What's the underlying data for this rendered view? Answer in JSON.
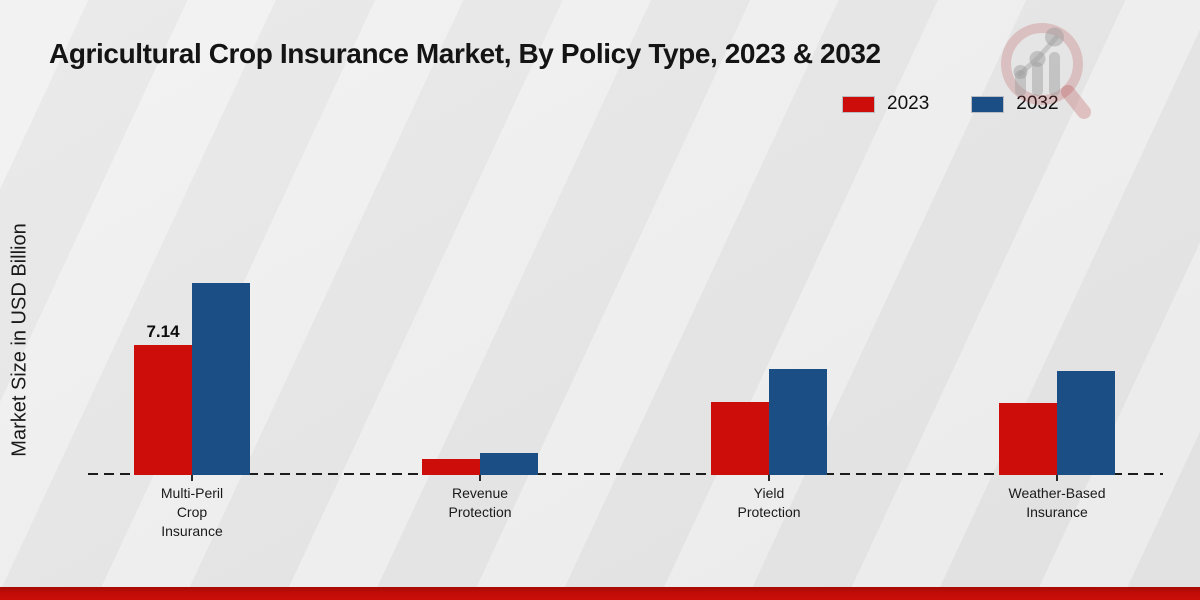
{
  "title": "Agricultural Crop Insurance Market, By Policy Type, 2023 & 2032",
  "y_axis_label": "Market Size in USD Billion",
  "colors": {
    "series_2023": "#cc0d0a",
    "series_2032": "#1b4e85",
    "bottom_strip": "#c20c07",
    "background": "#ebebeb"
  },
  "legend": [
    {
      "label": "2023",
      "color": "#cc0d0a"
    },
    {
      "label": "2032",
      "color": "#1b4e85"
    }
  ],
  "watermark_icon": "magnifier-bar-chart-logo-icon",
  "chart_data": {
    "type": "bar",
    "title": "Agricultural Crop Insurance Market, By Policy Type, 2023 & 2032",
    "xlabel": "",
    "ylabel": "Market Size in USD Billion",
    "categories": [
      "Multi-Peril Crop Insurance",
      "Revenue Protection",
      "Yield Protection",
      "Weather-Based Insurance"
    ],
    "category_label_lines": [
      [
        "Multi-Peril",
        "Crop",
        "Insurance"
      ],
      [
        "Revenue",
        "Protection"
      ],
      [
        "Yield",
        "Protection"
      ],
      [
        "Weather-Based",
        "Insurance"
      ]
    ],
    "series": [
      {
        "name": "2023",
        "color": "#cc0d0a",
        "values": [
          7.14,
          0.9,
          4.0,
          3.95
        ],
        "value_labels": [
          "7.14",
          "",
          "",
          ""
        ]
      },
      {
        "name": "2032",
        "color": "#1b4e85",
        "values": [
          10.55,
          1.2,
          5.8,
          5.7
        ],
        "value_labels": [
          "",
          "",
          "",
          ""
        ]
      }
    ],
    "ylim": [
      0,
      12
    ],
    "grid": false,
    "baseline_style": "dashed",
    "legend_position": "top-right"
  }
}
